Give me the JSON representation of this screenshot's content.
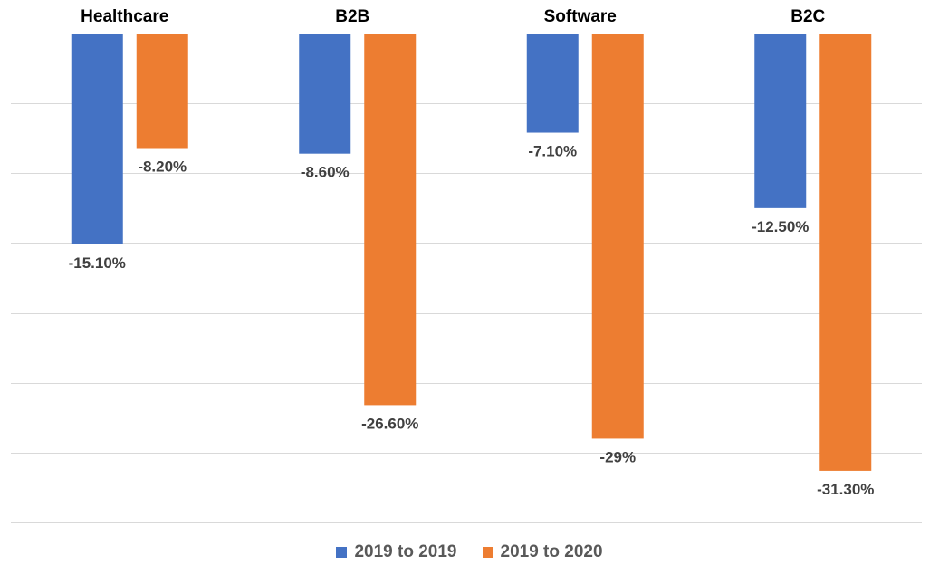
{
  "chart_data": {
    "type": "bar",
    "orientation": "vertical",
    "category_labels_position": "top",
    "categories": [
      "Healthcare",
      "B2B",
      "Software",
      "B2C"
    ],
    "series": [
      {
        "name": "2019 to 2019",
        "color": "#4472C4",
        "values": [
          -15.1,
          -8.6,
          -7.1,
          -12.5
        ],
        "labels": [
          "-15.10%",
          "-8.60%",
          "-7.10%",
          "-12.50%"
        ]
      },
      {
        "name": "2019 to 2020",
        "color": "#ED7D31",
        "values": [
          -8.2,
          -26.6,
          -29,
          -31.3
        ],
        "labels": [
          "-8.20%",
          "-26.60%",
          "-29%",
          "-31.30%"
        ]
      }
    ],
    "ylim": [
      -35,
      0
    ],
    "grid": true,
    "legend_position": "bottom",
    "title": "",
    "xlabel": "",
    "ylabel": ""
  }
}
